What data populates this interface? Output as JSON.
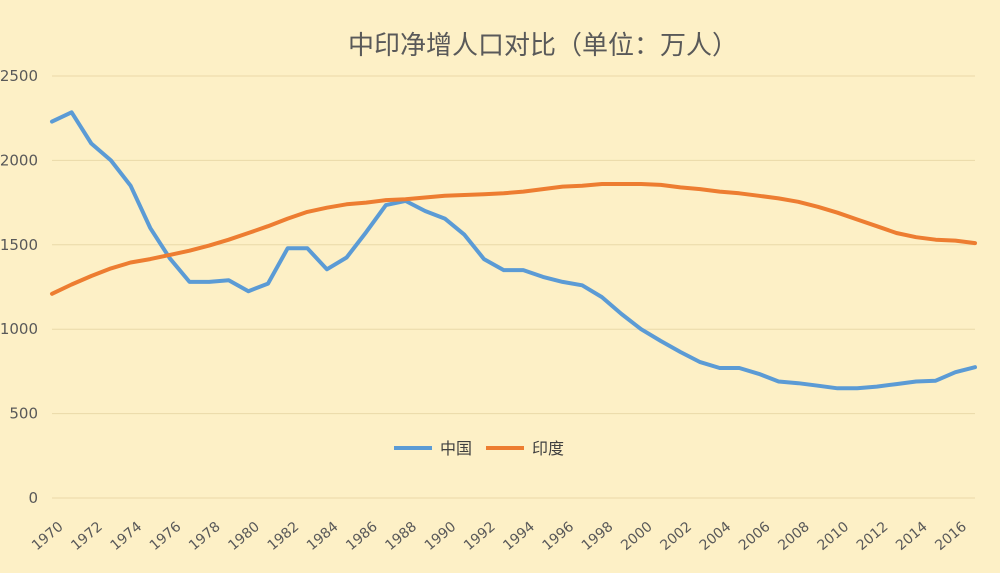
{
  "chart_data": {
    "type": "line",
    "title": "中印净增人口对比（单位：万人）",
    "xlabel": "",
    "ylabel": "",
    "ylim": [
      0,
      2500
    ],
    "yticks": [
      0,
      500,
      1000,
      1500,
      2000,
      2500
    ],
    "xlim": [
      1970,
      2017
    ],
    "xticks": [
      1970,
      1972,
      1974,
      1976,
      1978,
      1980,
      1982,
      1984,
      1986,
      1988,
      1990,
      1992,
      1994,
      1996,
      1998,
      2000,
      2002,
      2004,
      2006,
      2008,
      2010,
      2012,
      2014,
      2016
    ],
    "grid": true,
    "legend_position": "bottom-center",
    "x": [
      1970,
      1971,
      1972,
      1973,
      1974,
      1975,
      1976,
      1977,
      1978,
      1979,
      1980,
      1981,
      1982,
      1983,
      1984,
      1985,
      1986,
      1987,
      1988,
      1989,
      1990,
      1991,
      1992,
      1993,
      1994,
      1995,
      1996,
      1997,
      1998,
      1999,
      2000,
      2001,
      2002,
      2003,
      2004,
      2005,
      2006,
      2007,
      2008,
      2009,
      2010,
      2011,
      2012,
      2013,
      2014,
      2015,
      2016,
      2017
    ],
    "series": [
      {
        "name": "中国",
        "color": "#5b9bd5",
        "values": [
          2230,
          2285,
          2100,
          2000,
          1850,
          1600,
          1420,
          1280,
          1280,
          1290,
          1225,
          1270,
          1480,
          1480,
          1355,
          1425,
          1575,
          1735,
          1760,
          1700,
          1655,
          1560,
          1415,
          1350,
          1350,
          1310,
          1280,
          1260,
          1190,
          1090,
          1000,
          930,
          865,
          805,
          770,
          770,
          735,
          690,
          680,
          665,
          650,
          650,
          660,
          675,
          690,
          695,
          745,
          775
        ]
      },
      {
        "name": "印度",
        "color": "#ed7d31",
        "values": [
          1210,
          1265,
          1315,
          1360,
          1395,
          1415,
          1440,
          1465,
          1495,
          1530,
          1570,
          1610,
          1655,
          1695,
          1720,
          1740,
          1750,
          1765,
          1770,
          1780,
          1790,
          1795,
          1800,
          1805,
          1815,
          1830,
          1845,
          1850,
          1860,
          1860,
          1860,
          1855,
          1840,
          1830,
          1815,
          1805,
          1790,
          1775,
          1755,
          1725,
          1690,
          1650,
          1610,
          1570,
          1545,
          1530,
          1525,
          1510
        ]
      }
    ]
  }
}
